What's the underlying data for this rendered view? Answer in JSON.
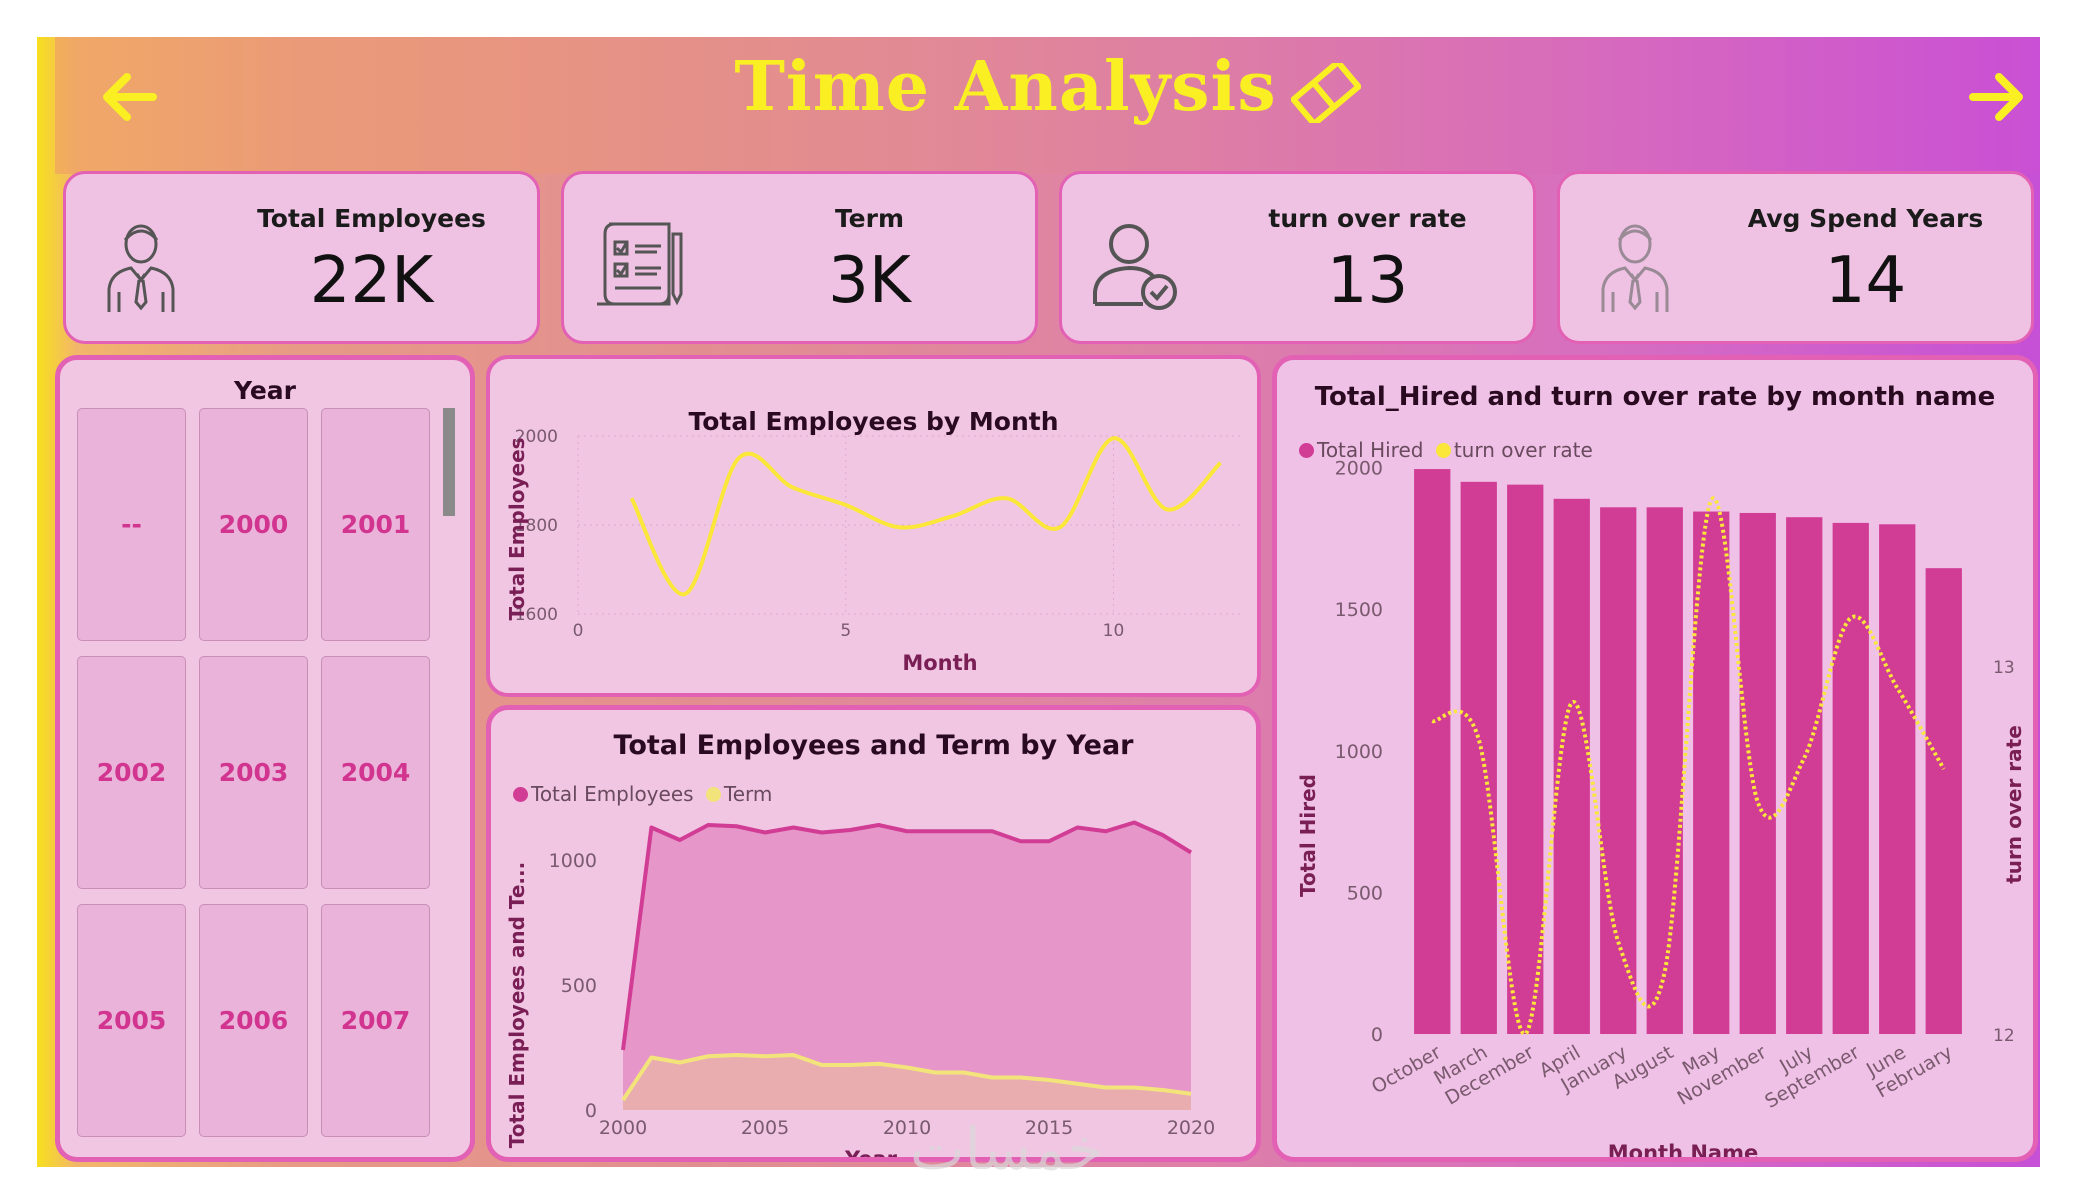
{
  "header": {
    "title": "Time Analysis"
  },
  "colors": {
    "accent_yellow": "#f9ef23",
    "bar_pink": "#d13c95",
    "panel_border": "#e261b4",
    "term_line": "#f2e47a"
  },
  "kpis": [
    {
      "label": "Total Employees",
      "value": "22K",
      "icon": "employee-icon"
    },
    {
      "label": "Term",
      "value": "3K",
      "icon": "document-checklist-icon"
    },
    {
      "label": "turn over rate",
      "value": "13",
      "icon": "user-check-icon"
    },
    {
      "label": "Avg Spend Years",
      "value": "14",
      "icon": "employee-icon"
    }
  ],
  "year_slicer": {
    "title": "Year",
    "items": [
      "--",
      "2000",
      "2001",
      "2002",
      "2003",
      "2004",
      "2005",
      "2006",
      "2007"
    ]
  },
  "chart_data": [
    {
      "type": "line",
      "title": "Total Employees by Month",
      "xlabel": "Month",
      "ylabel": "Total Employees",
      "x": [
        1,
        2,
        3,
        4,
        5,
        6,
        7,
        8,
        9,
        10,
        11,
        12
      ],
      "series": [
        {
          "values": [
            1860,
            1645,
            1950,
            1885,
            1845,
            1795,
            1820,
            1860,
            1795,
            1995,
            1835,
            1940
          ]
        }
      ],
      "xticks": [
        "0",
        "5",
        "10"
      ],
      "yticks": [
        "1600",
        "1800",
        "2000"
      ],
      "xlim": [
        0,
        12.4
      ],
      "ylim": [
        1600,
        2000
      ],
      "color": "#fae73a"
    },
    {
      "type": "area",
      "title": "Total Employees and Term by Year",
      "xlabel": "Year",
      "ylabel": "Total Employees and Te...",
      "x": [
        2000,
        2001,
        2002,
        2003,
        2004,
        2005,
        2006,
        2007,
        2008,
        2009,
        2010,
        2011,
        2012,
        2013,
        2014,
        2015,
        2016,
        2017,
        2018,
        2019,
        2020
      ],
      "series": [
        {
          "name": "Total Employees",
          "color": "#d13c95",
          "values": [
            240,
            1130,
            1080,
            1140,
            1135,
            1110,
            1130,
            1110,
            1120,
            1140,
            1115,
            1115,
            1115,
            1115,
            1075,
            1075,
            1130,
            1115,
            1150,
            1100,
            1030
          ]
        },
        {
          "name": "Term",
          "color": "#f2e47a",
          "values": [
            40,
            210,
            190,
            215,
            220,
            215,
            220,
            180,
            180,
            185,
            170,
            150,
            150,
            130,
            130,
            120,
            105,
            90,
            90,
            80,
            65
          ]
        }
      ],
      "xticks": [
        "2000",
        "2005",
        "2010",
        "2015",
        "2020"
      ],
      "yticks": [
        "0",
        "500",
        "1000"
      ],
      "ylim": [
        0,
        1240
      ],
      "legend": "top-left"
    },
    {
      "type": "bar",
      "title": "Total_Hired and turn over rate by month name",
      "xlabel": "Month Name",
      "ylabel": "Total Hired",
      "y2label": "turn over rate",
      "categories": [
        "October",
        "March",
        "December",
        "April",
        "January",
        "August",
        "May",
        "November",
        "July",
        "September",
        "June",
        "February"
      ],
      "series": [
        {
          "name": "Total Hired",
          "color": "#d13c95",
          "values": [
            1995,
            1950,
            1940,
            1890,
            1860,
            1860,
            1845,
            1840,
            1825,
            1805,
            1800,
            1645
          ]
        },
        {
          "name": "turn over rate",
          "color": "#fae73a",
          "axis": "right",
          "values": [
            12.85,
            12.8,
            12.0,
            12.9,
            12.25,
            12.17,
            13.45,
            12.63,
            12.75,
            13.13,
            12.94,
            12.72
          ]
        }
      ],
      "yticks": [
        "0",
        "500",
        "1000",
        "1500",
        "2000"
      ],
      "y2ticks": [
        "12",
        "13"
      ],
      "ylim": [
        0,
        2080
      ],
      "y2lim": [
        12,
        13.6
      ],
      "legend": "top-left"
    }
  ],
  "watermark": "خمسات"
}
